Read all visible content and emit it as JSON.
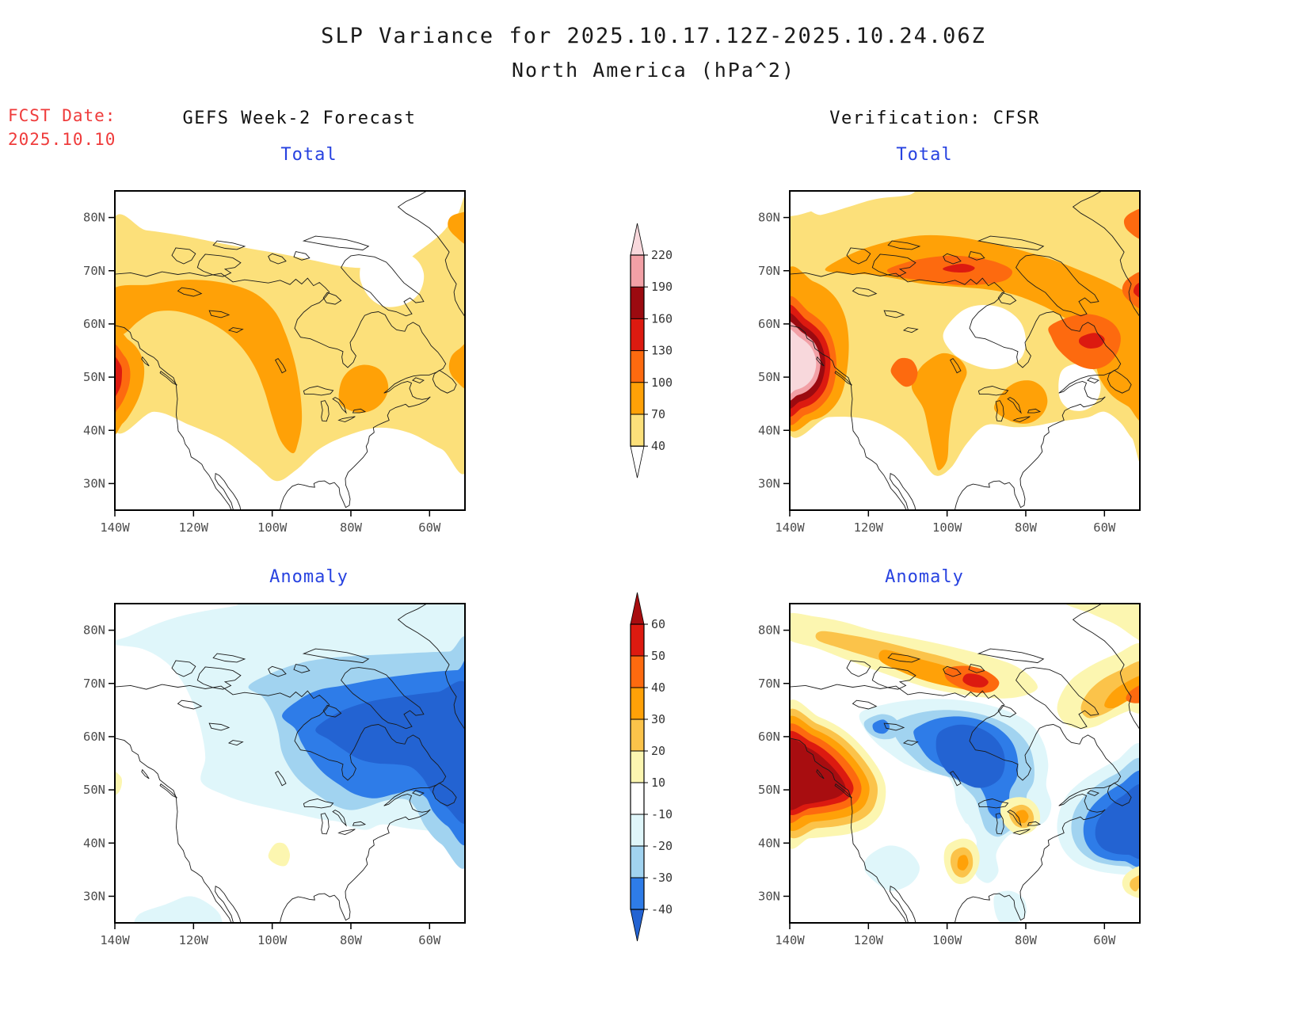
{
  "title": {
    "line1": "SLP Variance for 2025.10.17.12Z-2025.10.24.06Z",
    "line2": "North America (hPa^2)"
  },
  "fcst": {
    "label": "FCST Date:",
    "date": "2025.10.10",
    "color": "#EF3B3B"
  },
  "columns": {
    "left": "GEFS Week-2 Forecast",
    "right": "Verification: CFSR"
  },
  "panels": [
    {
      "id": "gefs-total",
      "subtitle": "Total"
    },
    {
      "id": "cfsr-total",
      "subtitle": "Total"
    },
    {
      "id": "gefs-anomaly",
      "subtitle": "Anomaly"
    },
    {
      "id": "cfsr-anomaly",
      "subtitle": "Anomaly"
    }
  ],
  "subtitle_color": "#2742E0",
  "axes": {
    "lat_tick_labels": [
      "80N",
      "70N",
      "60N",
      "50N",
      "40N",
      "30N"
    ],
    "lat_tick_values": [
      80,
      70,
      60,
      50,
      40,
      30
    ],
    "lon_tick_labels": [
      "140W",
      "120W",
      "100W",
      "80W",
      "60W"
    ],
    "lon_tick_values": [
      140,
      120,
      100,
      80,
      60
    ],
    "lat_range": [
      25,
      85
    ],
    "lon_range_west": [
      140,
      51
    ],
    "tick_label_color": "#4d4d4d"
  },
  "colorbars": {
    "total": {
      "name": "total-variance-scale",
      "tick_labels": [
        "220",
        "190",
        "160",
        "130",
        "100",
        "70",
        "40"
      ],
      "levels": [
        40,
        70,
        100,
        130,
        160,
        190,
        220
      ],
      "colors": [
        "#FCE07A",
        "#FFA107",
        "#FD6A0F",
        "#DC1A10",
        "#9B0A10",
        "#F2A0A6"
      ],
      "over_color": "#F8D8DC",
      "under_color": "#FFFFFF",
      "label_color": "#333333"
    },
    "anomaly": {
      "name": "anomaly-scale",
      "tick_labels": [
        "60",
        "50",
        "40",
        "30",
        "20",
        "10",
        "-10",
        "-20",
        "-30",
        "-40"
      ],
      "levels": [
        -40,
        -30,
        -20,
        -10,
        10,
        20,
        30,
        40,
        50,
        60
      ],
      "colors": [
        "#2E7CE8",
        "#A1D3F0",
        "#DFF6FA",
        "#FFFFFF",
        "#FCF6B0",
        "#FBC34A",
        "#FFA108",
        "#FD6A0F",
        "#DC1A10"
      ],
      "over_color": "#A80D10",
      "under_color": "#2363D2",
      "label_color": "#333333"
    }
  },
  "chart_data": {
    "type": "heatmap",
    "subtype": "filled-contour-geographic-maps",
    "title": "SLP Variance for 2025.10.17.12Z-2025.10.24.06Z",
    "region": "North America",
    "units": "hPa^2",
    "forecast_date": "2025.10.10",
    "valid_period": "2025.10.17.12Z-2025.10.24.06Z",
    "projection": {
      "lon_range_deg_west": [
        140,
        51
      ],
      "lat_range_deg_north": [
        25,
        85
      ]
    },
    "grid": false,
    "legend_position": "center column between panels",
    "panels": [
      {
        "name": "GEFS Week-2 Forecast / Total",
        "scale": "total (40 to 220 hPa^2)",
        "features": [
          "40-70 hPa^2 band covering most of Canada from about 40N to 78N",
          "70-100 hPa^2 swath from the Pacific Northwest across western Canada, extending south to ~36N near 95W",
          "local maximum 130-160 hPa^2 at the west edge near 139W 51N (British Columbia coast)",
          "secondary 70-100 cells over the Great Lakes / St. Lawrence (~76W 48N), near Newfoundland at the east edge (~53W 52N), and at the top-right edge (~53W 78N)",
          "white (<40) over the southern United States and parts of the high Arctic"
        ]
      },
      {
        "name": "Verification: CFSR / Total",
        "scale": "total (40 to 220 hPa^2)",
        "features": [
          "intense maximum exceeding 220 hPa^2 centered near 135W 53N off the Pacific Northwest coast, ringed by 190-220 (pink) and 160-190 (dark red)",
          "broad 70-100 coverage over the Arctic Archipelago, western Canada, Quebec/Labrador and the Great Lakes",
          "100-130 cores over the central Arctic islands (~95W 70N, with small 130-160 spot), Quebec/Labrador (~62W 57N, with small 130-160 spot), near Montana (~110W 50N), and at the east edge (~66N)",
          "white (<40) over Hudson Bay, the southern United States and southeast of the Maritimes"
        ]
      },
      {
        "name": "GEFS Week-2 Forecast / Anomaly",
        "scale": "anomaly (-40 to +60 hPa^2)",
        "features": [
          "large negative anomaly over eastern Canada with minimum below -40 hPa^2 over Quebec/Labrador (~55-75W, 50-68N)",
          "-10 to -30 shading over most of northern and central Canada and the Northwest Atlantic",
          "weak positive cells (10-20) at the west edge near 139W 51N and near 98W 38N",
          "near-zero (white) over the western and southern United States"
        ]
      },
      {
        "name": "Verification: CFSR / Anomaly",
        "scale": "anomaly (-40 to +60 hPa^2)",
        "features": [
          "strong positive anomaly exceeding +60 hPa^2 at the west edge near 133W 52N (BC coast), ringed by +20 to +50 shading",
          "positive band (+10 to +50) along the Arctic Archipelago with +40-50 core near 93W 71N",
          "positive cells over the Great Lakes (~81W 45N), the southern Plains (~96W 36N) and the northeast corner (~53W 67N)",
          "negative centers below -40 hPa^2 over central Canada (~95W 58N) and the western Atlantic / Maritimes (~57W 44N)",
          "small negative spot near 117W 61N; near-zero (white) elsewhere"
        ]
      }
    ]
  }
}
